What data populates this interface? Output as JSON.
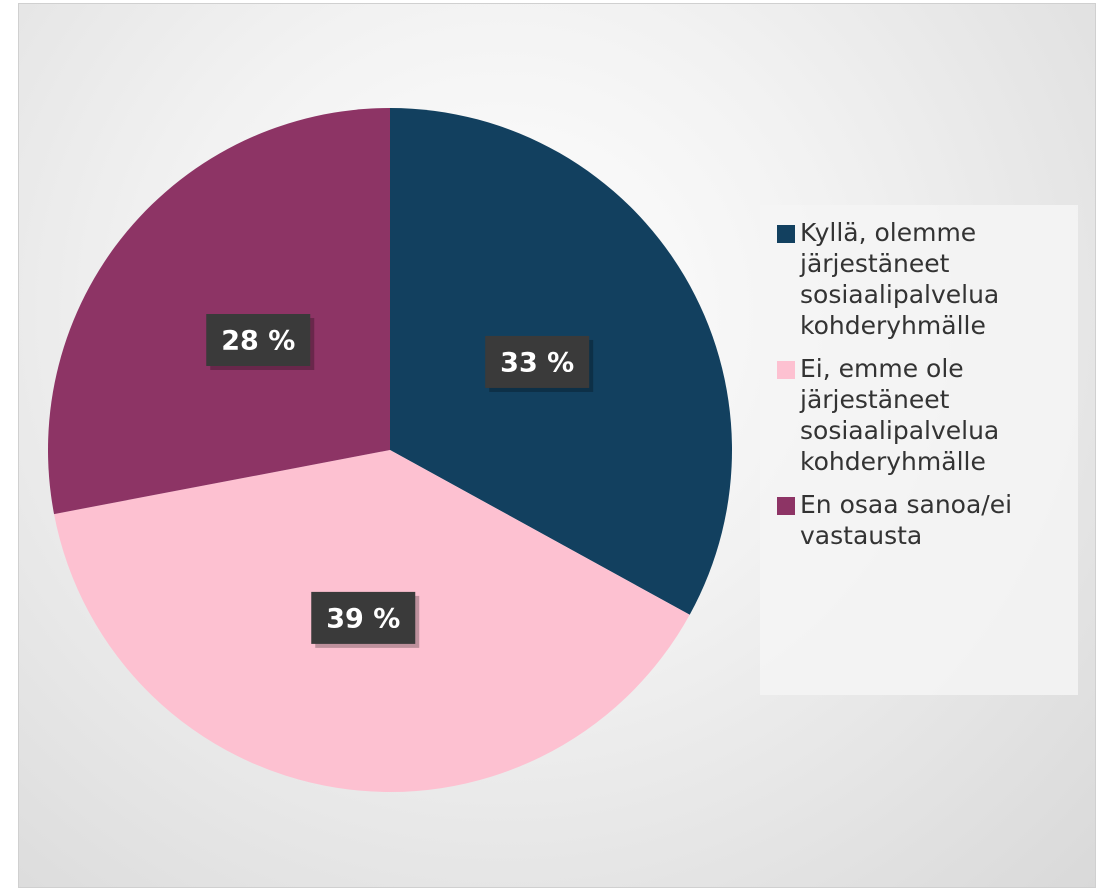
{
  "chart_data": {
    "type": "pie",
    "categories": [
      "Kyllä, olemme järjestäneet sosiaalipalvelua kohderyhmälle",
      "Ei, emme ole järjestäneet sosiaalipalvelua kohderyhmälle",
      "En osaa sanoa/ei vastausta"
    ],
    "values": [
      33,
      39,
      28
    ],
    "value_labels": [
      "33 %",
      "39 %",
      "28 %"
    ],
    "colors": [
      "#12405f",
      "#fdc1d1",
      "#8d3465"
    ],
    "legend": "right"
  }
}
